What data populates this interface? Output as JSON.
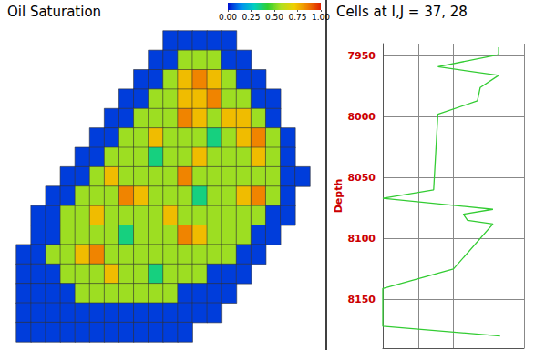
{
  "chart_data": [
    {
      "type": "heatmap",
      "title": "Oil Saturation",
      "tick_labels": false,
      "cells": [
        [
          null,
          null,
          null,
          null,
          null,
          null,
          null,
          null,
          null,
          null,
          0.05,
          0.05,
          0.05,
          0.05,
          0.05,
          null,
          null,
          null,
          null,
          null
        ],
        [
          null,
          null,
          null,
          null,
          null,
          null,
          null,
          null,
          null,
          0.05,
          0.05,
          0.55,
          0.55,
          0.55,
          0.05,
          0.05,
          null,
          null,
          null,
          null
        ],
        [
          null,
          null,
          null,
          null,
          null,
          null,
          null,
          null,
          0.05,
          0.05,
          0.55,
          0.75,
          0.85,
          0.75,
          0.55,
          0.05,
          0.05,
          null,
          null,
          null
        ],
        [
          null,
          null,
          null,
          null,
          null,
          null,
          null,
          0.05,
          0.05,
          0.55,
          0.55,
          0.75,
          0.75,
          0.85,
          0.55,
          0.55,
          0.05,
          0.05,
          null,
          null
        ],
        [
          null,
          null,
          null,
          null,
          null,
          null,
          0.05,
          0.05,
          0.55,
          0.55,
          0.55,
          0.85,
          0.75,
          0.55,
          0.75,
          0.75,
          0.55,
          0.05,
          null,
          null
        ],
        [
          null,
          null,
          null,
          null,
          null,
          0.05,
          0.05,
          0.55,
          0.55,
          0.75,
          0.55,
          0.55,
          0.55,
          0.35,
          0.55,
          0.75,
          0.85,
          0.55,
          0.05,
          null
        ],
        [
          null,
          null,
          null,
          null,
          0.05,
          0.05,
          0.55,
          0.55,
          0.55,
          0.35,
          0.55,
          0.55,
          0.75,
          0.55,
          0.55,
          0.55,
          0.75,
          0.55,
          0.05,
          null
        ],
        [
          null,
          null,
          null,
          0.05,
          0.05,
          0.55,
          0.75,
          0.55,
          0.55,
          0.55,
          0.55,
          0.85,
          0.55,
          0.55,
          0.55,
          0.55,
          0.55,
          0.55,
          0.05,
          0.05
        ],
        [
          null,
          null,
          0.05,
          0.05,
          0.55,
          0.55,
          0.55,
          0.85,
          0.75,
          0.55,
          0.55,
          0.55,
          0.35,
          0.55,
          0.55,
          0.75,
          0.85,
          0.55,
          0.05,
          null
        ],
        [
          null,
          0.05,
          0.05,
          0.55,
          0.55,
          0.75,
          0.55,
          0.55,
          0.55,
          0.55,
          0.75,
          0.55,
          0.55,
          0.55,
          0.55,
          0.55,
          0.55,
          0.05,
          0.05,
          null
        ],
        [
          null,
          0.05,
          0.05,
          0.55,
          0.55,
          0.55,
          0.55,
          0.35,
          0.55,
          0.55,
          0.55,
          0.85,
          0.75,
          0.55,
          0.55,
          0.55,
          0.05,
          0.05,
          null,
          null
        ],
        [
          0.05,
          0.05,
          0.55,
          0.55,
          0.75,
          0.85,
          0.55,
          0.55,
          0.55,
          0.55,
          0.55,
          0.55,
          0.55,
          0.55,
          0.55,
          0.05,
          0.05,
          null,
          null,
          null
        ],
        [
          0.05,
          0.05,
          0.05,
          0.55,
          0.55,
          0.55,
          0.75,
          0.55,
          0.55,
          0.35,
          0.55,
          0.55,
          0.55,
          0.05,
          0.05,
          0.05,
          null,
          null,
          null,
          null
        ],
        [
          0.05,
          0.05,
          0.05,
          0.05,
          0.55,
          0.55,
          0.55,
          0.55,
          0.55,
          0.55,
          0.55,
          0.05,
          0.05,
          0.05,
          0.05,
          null,
          null,
          null,
          null,
          null
        ],
        [
          0.05,
          0.05,
          0.05,
          0.05,
          0.05,
          0.05,
          0.05,
          0.05,
          0.05,
          0.05,
          0.05,
          0.05,
          0.05,
          0.05,
          null,
          null,
          null,
          null,
          null,
          null
        ],
        [
          0.05,
          0.05,
          0.05,
          0.05,
          0.05,
          0.05,
          0.05,
          0.05,
          0.05,
          0.05,
          0.05,
          0.05,
          null,
          null,
          null,
          null,
          null,
          null,
          null,
          null
        ]
      ],
      "colorbar": {
        "range": [
          0,
          1
        ],
        "ticks": [
          {
            "value": 0,
            "label": "0.00"
          },
          {
            "value": 0.25,
            "label": "0.25"
          },
          {
            "value": 0.5,
            "label": "0.50"
          },
          {
            "value": 0.75,
            "label": "0.75"
          },
          {
            "value": 1,
            "label": "1.00"
          }
        ]
      }
    },
    {
      "type": "line",
      "title": "Cells at I,J = 37, 28",
      "y_label": "Depth",
      "color": "#33cc33",
      "grid": true,
      "tick_labels": "y",
      "x": [
        0.82,
        0.82,
        0.39,
        0.82,
        0.69,
        0.67,
        0.39,
        0.36,
        0.0,
        0.78,
        0.57,
        0.6,
        0.78,
        0.5,
        0.0,
        0.0,
        0.83
      ],
      "values": [
        7943,
        7949,
        7959,
        7966,
        7976,
        7987,
        7998,
        8060,
        8067,
        8076,
        8080,
        8085,
        8088,
        8125,
        8141,
        8172,
        8180
      ],
      "xlim": [
        0,
        1
      ],
      "xticks": [
        0,
        0.25,
        0.5,
        0.75,
        1
      ],
      "ylim": [
        7940,
        8190
      ],
      "yticks": [
        7950,
        8000,
        8050,
        8100,
        8150
      ]
    }
  ]
}
